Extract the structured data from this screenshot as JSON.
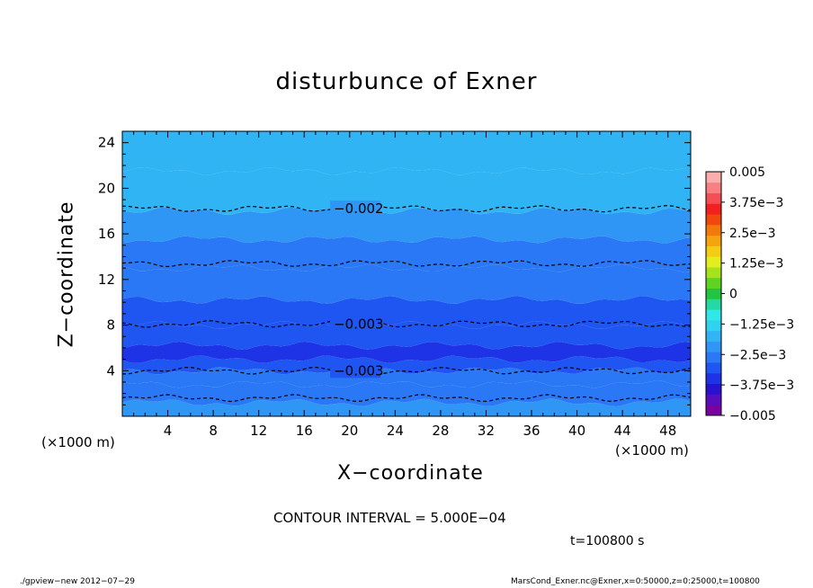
{
  "chart_data": {
    "type": "heatmap",
    "title": "disturbunce of Exner",
    "xlabel": "X−coordinate",
    "ylabel": "Z−coordinate",
    "x_unit": "(×1000 m)",
    "y_unit": "(×1000 m)",
    "xlim": [
      0,
      50
    ],
    "ylim": [
      0,
      25
    ],
    "x_ticks": [
      4,
      8,
      12,
      16,
      20,
      24,
      28,
      32,
      36,
      40,
      44,
      48
    ],
    "y_ticks": [
      4,
      8,
      12,
      16,
      20,
      24
    ],
    "contour_interval_text": "CONTOUR INTERVAL = 5.000E−04",
    "time_text": "t=100800 s",
    "colorbar": {
      "min": -0.005,
      "max": 0.005,
      "labels": [
        "0.005",
        "3.75e−3",
        "2.5e−3",
        "1.25e−3",
        "0",
        "−1.25e−3",
        "−2.5e−3",
        "−3.75e−3",
        "−0.005"
      ],
      "label_values": [
        0.005,
        0.00375,
        0.0025,
        0.00125,
        0,
        -0.00125,
        -0.0025,
        -0.00375,
        -0.005
      ],
      "colors": [
        "#7a00a0",
        "#5a0dbd",
        "#2a10cf",
        "#1e32e6",
        "#1f55f0",
        "#2a78f5",
        "#2f96f5",
        "#30b4f3",
        "#2fd2ef",
        "#30e8ea",
        "#24d9a6",
        "#22c440",
        "#5fd321",
        "#a7e31c",
        "#e3ee1f",
        "#f5cb14",
        "#f5a30e",
        "#f27a0a",
        "#f1480d",
        "#f41f1f",
        "#f54f55",
        "#f88080",
        "#fbaeae"
      ]
    },
    "bands": [
      {
        "z": [
          0,
          1.2
        ],
        "value": -0.00225
      },
      {
        "z": [
          1.2,
          2.8
        ],
        "value": -0.0025
      },
      {
        "z": [
          2.8,
          4.0
        ],
        "value": -0.00275
      },
      {
        "z": [
          4.0,
          5.0
        ],
        "value": -0.0031
      },
      {
        "z": [
          5.0,
          6.2
        ],
        "value": -0.0034
      },
      {
        "z": [
          6.2,
          8.0
        ],
        "value": -0.0032
      },
      {
        "z": [
          8.0,
          10.2
        ],
        "value": -0.00295
      },
      {
        "z": [
          10.2,
          13.0
        ],
        "value": -0.0027
      },
      {
        "z": [
          13.0,
          15.5
        ],
        "value": -0.00245
      },
      {
        "z": [
          15.5,
          18.0
        ],
        "value": -0.0022
      },
      {
        "z": [
          18.0,
          21.5
        ],
        "value": -0.00195
      },
      {
        "z": [
          21.5,
          25.0
        ],
        "value": -0.0017
      }
    ],
    "contours": [
      {
        "level": -0.002,
        "label": "−0.002",
        "z": 18.2,
        "label_x": 18.6
      },
      {
        "level": -0.0025,
        "label": "",
        "z": 13.4,
        "label_x": null
      },
      {
        "level": -0.003,
        "label": "−0.003",
        "z": 8.1,
        "label_x": 18.6
      },
      {
        "level": -0.003,
        "label": "−0.003",
        "z": 4.0,
        "label_x": 18.6
      },
      {
        "level": -0.0025,
        "label": "",
        "z": 1.6,
        "label_x": null
      }
    ]
  },
  "footer": {
    "left": "./gpview−new   2012−07−29",
    "right": "MarsCond_Exner.nc@Exner,x=0:50000,z=0:25000,t=100800"
  }
}
